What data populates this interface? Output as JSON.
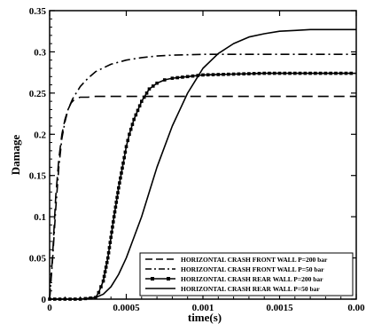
{
  "chart_data": {
    "type": "line",
    "title": "",
    "xlabel": "time(s)",
    "ylabel": "Damage",
    "xlim": [
      0,
      0.002
    ],
    "ylim": [
      0,
      0.35
    ],
    "xticks": [
      {
        "value": 0,
        "label": "0"
      },
      {
        "value": 0.0005,
        "label": "0.0005"
      },
      {
        "value": 0.001,
        "label": "0.001"
      },
      {
        "value": 0.0015,
        "label": "0.0015"
      },
      {
        "value": 0.002,
        "label": "0.00"
      }
    ],
    "yticks": [
      {
        "value": 0,
        "label": "0"
      },
      {
        "value": 0.05,
        "label": "0.05"
      },
      {
        "value": 0.1,
        "label": "0.1"
      },
      {
        "value": 0.15,
        "label": "0.15"
      },
      {
        "value": 0.2,
        "label": "0.2"
      },
      {
        "value": 0.25,
        "label": "0.25"
      },
      {
        "value": 0.3,
        "label": "0.3"
      },
      {
        "value": 0.35,
        "label": "0.35"
      }
    ],
    "grid": false,
    "legend_position": "bottom-right",
    "series": [
      {
        "name": "HORIZONTAL CRASH FRONT WALL P=200 bar",
        "style": "dashed",
        "color": "#000000",
        "x": [
          0,
          2e-05,
          4e-05,
          6e-05,
          8e-05,
          0.0001,
          0.00012,
          0.00014,
          0.00016,
          0.00018,
          0.0002,
          0.00025,
          0.0003,
          0.0004,
          0.0006,
          0.0008,
          0.001,
          0.0012,
          0.0014,
          0.0016,
          0.0018,
          0.002
        ],
        "y": [
          0,
          0.055,
          0.125,
          0.17,
          0.2,
          0.218,
          0.23,
          0.238,
          0.242,
          0.244,
          0.245,
          0.245,
          0.246,
          0.246,
          0.246,
          0.246,
          0.246,
          0.246,
          0.246,
          0.246,
          0.246,
          0.246
        ]
      },
      {
        "name": "HORIZONTAL CRASH FRONT WALL P=50 bar",
        "style": "dashdot",
        "color": "#000000",
        "x": [
          0,
          2e-05,
          4e-05,
          6e-05,
          8e-05,
          0.0001,
          0.00012,
          0.00015,
          0.0002,
          0.00025,
          0.0003,
          0.0004,
          0.0005,
          0.0006,
          0.0007,
          0.0008,
          0.001,
          0.0012,
          0.0014,
          0.0016,
          0.0018,
          0.002
        ],
        "y": [
          0,
          0.05,
          0.11,
          0.16,
          0.195,
          0.215,
          0.23,
          0.243,
          0.258,
          0.268,
          0.276,
          0.285,
          0.29,
          0.293,
          0.295,
          0.296,
          0.297,
          0.297,
          0.297,
          0.297,
          0.297,
          0.297
        ]
      },
      {
        "name": "HORIZONTAL CRASH REAR WALL P=200 bar",
        "style": "solid-square-markers",
        "color": "#000000",
        "x": [
          0,
          0.0001,
          0.0002,
          0.0003,
          0.00032,
          0.00035,
          0.00038,
          0.0004,
          0.00042,
          0.00045,
          0.00048,
          0.0005,
          0.00052,
          0.00055,
          0.0006,
          0.00065,
          0.0007,
          0.00075,
          0.0008,
          0.0009,
          0.001,
          0.0012,
          0.0014,
          0.0016,
          0.0018,
          0.002
        ],
        "y": [
          0,
          0,
          0,
          0.002,
          0.008,
          0.022,
          0.05,
          0.075,
          0.1,
          0.135,
          0.165,
          0.185,
          0.2,
          0.218,
          0.24,
          0.255,
          0.262,
          0.266,
          0.268,
          0.27,
          0.272,
          0.273,
          0.274,
          0.274,
          0.274,
          0.274
        ]
      },
      {
        "name": "HORIZONTAL CRASH REAR WALL P=50 bar",
        "style": "solid",
        "color": "#000000",
        "x": [
          0,
          0.0001,
          0.0002,
          0.0003,
          0.00035,
          0.0004,
          0.00045,
          0.0005,
          0.00055,
          0.0006,
          0.00065,
          0.0007,
          0.00075,
          0.0008,
          0.00085,
          0.0009,
          0.00095,
          0.001,
          0.0011,
          0.0012,
          0.0013,
          0.0014,
          0.0015,
          0.0016,
          0.0017,
          0.0018,
          0.002
        ],
        "y": [
          0,
          0,
          0,
          0.002,
          0.006,
          0.015,
          0.03,
          0.05,
          0.075,
          0.1,
          0.13,
          0.16,
          0.185,
          0.21,
          0.23,
          0.25,
          0.265,
          0.28,
          0.298,
          0.31,
          0.318,
          0.322,
          0.325,
          0.326,
          0.327,
          0.327,
          0.327
        ]
      }
    ]
  }
}
